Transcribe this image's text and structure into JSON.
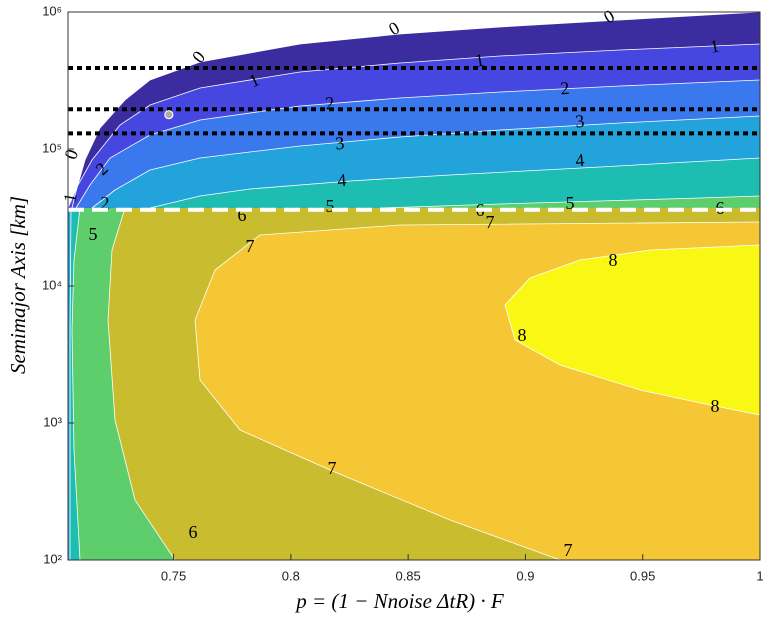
{
  "chart_data": {
    "type": "contour",
    "x_label": "p = (1 − Nnoise ΔtR) · F",
    "y_label": "Semimajor Axis [km]",
    "xlim": [
      0.705,
      1
    ],
    "xticks": [
      0.75,
      0.8,
      0.85,
      0.9,
      0.95,
      1
    ],
    "ylim": [
      100,
      1000000
    ],
    "yticks": [
      {
        "value": 100,
        "label": "10²"
      },
      {
        "value": 1000,
        "label": "10³"
      },
      {
        "value": 10000,
        "label": "10⁴"
      },
      {
        "value": 100000,
        "label": "10⁵"
      },
      {
        "value": 1000000,
        "label": "10⁶"
      }
    ],
    "log_y": true,
    "levels": [
      0,
      1,
      2,
      3,
      4,
      5,
      6,
      7,
      8
    ],
    "colors": [
      "#3b2d9f",
      "#4647e0",
      "#3a78ee",
      "#22a3dc",
      "#1ebdb2",
      "#5ecd6c",
      "#c9bc2e",
      "#f6c735",
      "#f8f814"
    ],
    "hlines": [
      {
        "value": 390000,
        "color": "#000000",
        "dash": "5 4"
      },
      {
        "value": 195000,
        "color": "#000000",
        "dash": "5 4"
      },
      {
        "value": 130000,
        "color": "#000000",
        "dash": "5 4"
      },
      {
        "value": 36000,
        "color": "#ffffff",
        "dash": "16 8"
      }
    ],
    "point": {
      "x": 0.748,
      "y": 178000
    }
  }
}
